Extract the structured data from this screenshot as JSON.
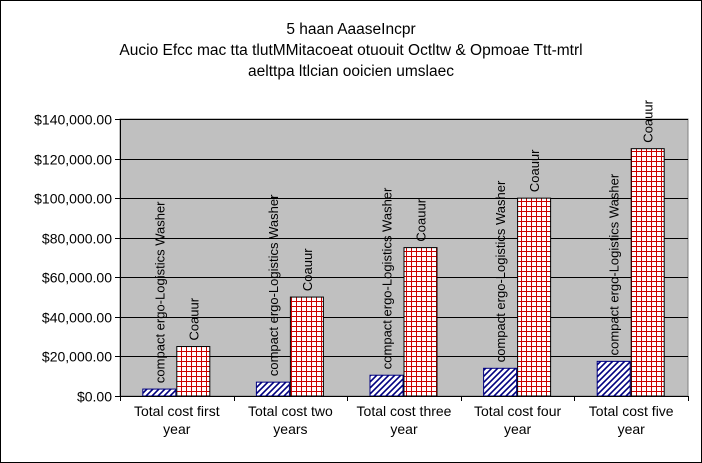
{
  "chart_data": {
    "type": "bar",
    "title": [
      "5 haan AaaseIncpr",
      "Aucio Efcc mac tta tlutMMitacoeat otuouit Octltw & Opmoae Ttt-mtrl",
      "aelttpa ltlcian ooicien umslaec"
    ],
    "categories": [
      [
        "Total cost first",
        "year"
      ],
      [
        "Total cost two",
        "years"
      ],
      [
        "Total cost three",
        "year"
      ],
      [
        "Total cost four",
        "year"
      ],
      [
        "Total cost five",
        "year"
      ]
    ],
    "series": [
      {
        "name": "compact ergo-Logistics Washer",
        "values": [
          3500,
          7000,
          10500,
          14000,
          17500
        ],
        "color": "#000080",
        "pattern": "diagonal-hatch"
      },
      {
        "name": "Coauur",
        "values": [
          25000,
          50000,
          75000,
          100000,
          125000
        ],
        "color": "#cc0000",
        "pattern": "grid"
      }
    ],
    "ylim": [
      0,
      140000
    ],
    "yticks": [
      0,
      20000,
      40000,
      60000,
      80000,
      100000,
      120000,
      140000
    ],
    "ytick_labels": [
      "$0.00",
      "$20,000.00",
      "$40,000.00",
      "$60,000.00",
      "$80,000.00",
      "$100,000.00",
      "$120,000.00",
      "$140,000.00"
    ],
    "grid": true,
    "plot_background": "#c0c0c0",
    "legend": "none"
  }
}
